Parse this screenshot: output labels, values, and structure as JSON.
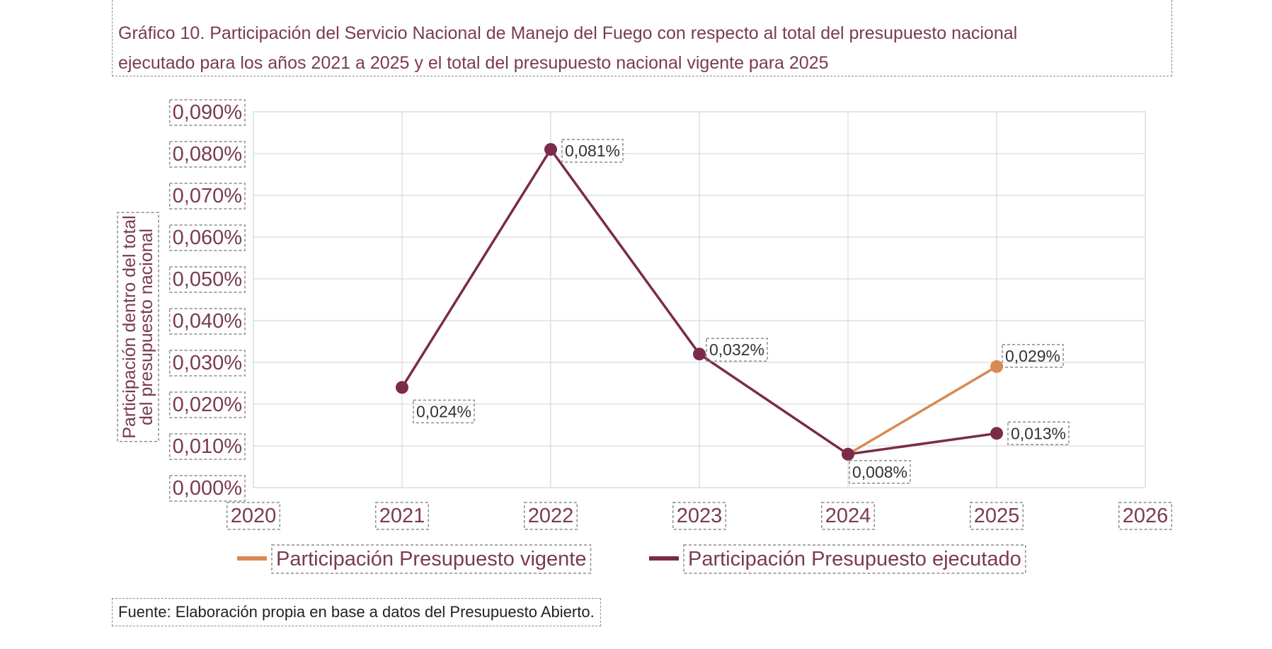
{
  "title_line1": "Gráfico 10. Participación del Servicio Nacional de Manejo del Fuego con respecto al total del presupuesto nacional",
  "title_line2": "ejecutado para los años 2021 a 2025 y el total del presupuesto nacional vigente para 2025",
  "source": "Fuente: Elaboración propia en base a datos del Presupuesto Abierto.",
  "colors": {
    "text": "#7a3a55",
    "ejecutado": "#7b2a4b",
    "vigente": "#d98a52",
    "grid": "#d9d9d9"
  },
  "chart_data": {
    "type": "line",
    "ylabel_lines": [
      "Participación dentro del total",
      "del presupuesto nacional"
    ],
    "xlim": [
      2020,
      2026
    ],
    "ylim": [
      0,
      0.09
    ],
    "x_ticks": [
      "2020",
      "2021",
      "2022",
      "2023",
      "2024",
      "2025",
      "2026"
    ],
    "y_ticks": [
      "0,000%",
      "0,010%",
      "0,020%",
      "0,030%",
      "0,040%",
      "0,050%",
      "0,060%",
      "0,070%",
      "0,080%",
      "0,090%"
    ],
    "grid": true,
    "legend_position": "bottom",
    "series": [
      {
        "name": "Participación Presupuesto vigente",
        "color": "#d98a52",
        "points": [
          {
            "x": 2024,
            "y": 0.008
          },
          {
            "x": 2025,
            "y": 0.029,
            "label": "0,029%"
          }
        ]
      },
      {
        "name": "Participación Presupuesto ejecutado",
        "color": "#7b2a4b",
        "points": [
          {
            "x": 2021,
            "y": 0.024,
            "label": "0,024%"
          },
          {
            "x": 2022,
            "y": 0.081,
            "label": "0,081%"
          },
          {
            "x": 2023,
            "y": 0.032,
            "label": "0,032%"
          },
          {
            "x": 2024,
            "y": 0.008,
            "label": "0,008%"
          },
          {
            "x": 2025,
            "y": 0.013,
            "label": "0,013%"
          }
        ]
      }
    ]
  }
}
